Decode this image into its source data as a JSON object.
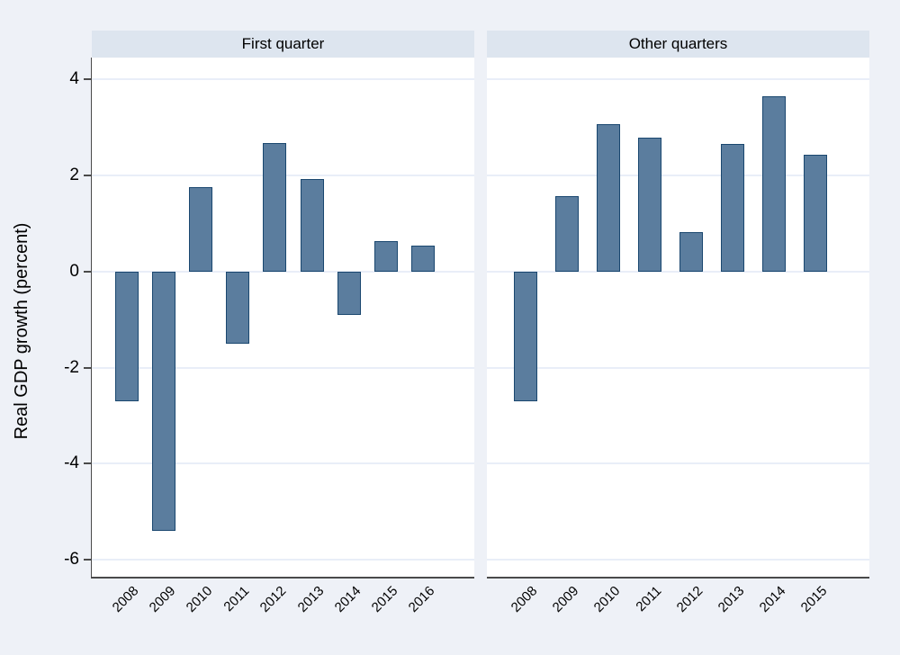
{
  "y_axis": {
    "title": "Real GDP growth (percent)",
    "ticks": [
      4,
      2,
      0,
      -2,
      -4,
      -6
    ]
  },
  "chart_data": [
    {
      "type": "bar",
      "title": "First quarter",
      "categories": [
        "2008",
        "2009",
        "2010",
        "2011",
        "2012",
        "2013",
        "2014",
        "2015",
        "2016"
      ],
      "values": [
        -2.7,
        -5.4,
        1.75,
        -1.5,
        2.68,
        1.92,
        -0.9,
        0.64,
        0.54
      ],
      "xlabel": "",
      "ylabel": "Real GDP growth (percent)",
      "ylim": [
        -6.37,
        4.45
      ],
      "yticks": [
        4,
        2,
        0,
        -2,
        -4,
        -6
      ],
      "grid": true,
      "legend": "none"
    },
    {
      "type": "bar",
      "title": "Other quarters",
      "categories": [
        "2008",
        "2009",
        "2010",
        "2011",
        "2012",
        "2013",
        "2014",
        "2015"
      ],
      "values": [
        -2.7,
        1.57,
        3.07,
        2.79,
        0.81,
        2.65,
        3.64,
        2.43
      ],
      "xlabel": "",
      "ylabel": "Real GDP growth (percent)",
      "ylim": [
        -6.37,
        4.45
      ],
      "yticks": [
        4,
        2,
        0,
        -2,
        -4,
        -6
      ],
      "grid": true,
      "legend": "none"
    }
  ],
  "colors": {
    "background": "#eef1f7",
    "panel_band": "#dde5ef",
    "plot_background": "#ffffff",
    "gridline": "#e9eef8",
    "bar_fill": "#5b7d9e",
    "bar_border": "#1a476f",
    "axis": "#4a4a4a",
    "text": "#000000"
  }
}
